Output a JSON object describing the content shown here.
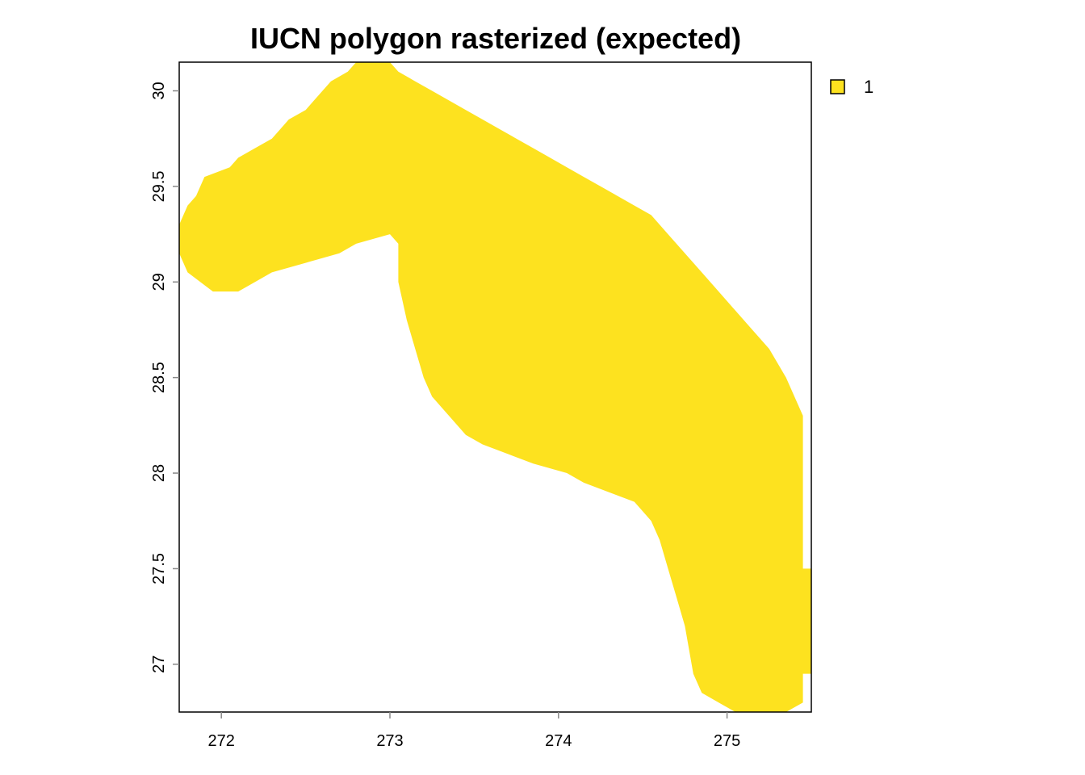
{
  "chart_data": {
    "type": "heatmap",
    "title": "IUCN polygon rasterized (expected)",
    "xlabel": "",
    "ylabel": "",
    "xlim": [
      271.75,
      275.5
    ],
    "ylim": [
      26.75,
      30.15
    ],
    "x_ticks": [
      272,
      273,
      274,
      275
    ],
    "y_ticks": [
      27,
      27.5,
      28,
      28.5,
      29,
      29.5,
      30
    ],
    "cell_value": 1,
    "fill_color": "#FDE21F",
    "legend": {
      "position": "top-right",
      "entries": [
        {
          "label": "1",
          "color": "#FDE21F"
        }
      ]
    },
    "region_upper_edge": [
      [
        271.75,
        29.3
      ],
      [
        271.8,
        29.4
      ],
      [
        271.85,
        29.45
      ],
      [
        271.9,
        29.55
      ],
      [
        272.05,
        29.6
      ],
      [
        272.1,
        29.65
      ],
      [
        272.2,
        29.7
      ],
      [
        272.3,
        29.75
      ],
      [
        272.35,
        29.8
      ],
      [
        272.4,
        29.85
      ],
      [
        272.5,
        29.9
      ],
      [
        272.55,
        29.95
      ],
      [
        272.6,
        30.0
      ],
      [
        272.65,
        30.05
      ],
      [
        272.75,
        30.1
      ],
      [
        272.8,
        30.15
      ],
      [
        273.0,
        30.15
      ],
      [
        273.05,
        30.1
      ],
      [
        273.15,
        30.05
      ],
      [
        273.25,
        30.0
      ],
      [
        273.35,
        29.95
      ],
      [
        273.45,
        29.9
      ],
      [
        273.55,
        29.85
      ],
      [
        273.65,
        29.8
      ],
      [
        273.75,
        29.75
      ],
      [
        273.85,
        29.7
      ],
      [
        273.95,
        29.65
      ],
      [
        274.05,
        29.6
      ],
      [
        274.15,
        29.55
      ],
      [
        274.25,
        29.5
      ],
      [
        274.35,
        29.45
      ],
      [
        274.45,
        29.4
      ],
      [
        274.55,
        29.35
      ],
      [
        274.65,
        29.25
      ],
      [
        274.75,
        29.15
      ],
      [
        274.85,
        29.05
      ],
      [
        274.95,
        28.95
      ],
      [
        275.05,
        28.85
      ],
      [
        275.15,
        28.75
      ],
      [
        275.25,
        28.65
      ],
      [
        275.35,
        28.5
      ],
      [
        275.45,
        28.3
      ],
      [
        275.45,
        27.5
      ],
      [
        275.5,
        27.5
      ],
      [
        275.5,
        26.95
      ]
    ],
    "region_lower_edge": [
      [
        275.5,
        26.95
      ],
      [
        275.45,
        26.95
      ],
      [
        275.45,
        26.8
      ],
      [
        275.35,
        26.75
      ],
      [
        275.05,
        26.75
      ],
      [
        274.95,
        26.8
      ],
      [
        274.85,
        26.85
      ],
      [
        274.8,
        26.95
      ],
      [
        274.75,
        27.2
      ],
      [
        274.7,
        27.35
      ],
      [
        274.65,
        27.5
      ],
      [
        274.6,
        27.65
      ],
      [
        274.55,
        27.75
      ],
      [
        274.45,
        27.85
      ],
      [
        274.3,
        27.9
      ],
      [
        274.15,
        27.95
      ],
      [
        274.05,
        28.0
      ],
      [
        273.85,
        28.05
      ],
      [
        273.7,
        28.1
      ],
      [
        273.55,
        28.15
      ],
      [
        273.45,
        28.2
      ],
      [
        273.35,
        28.3
      ],
      [
        273.25,
        28.4
      ],
      [
        273.2,
        28.5
      ],
      [
        273.15,
        28.65
      ],
      [
        273.1,
        28.8
      ],
      [
        273.05,
        29.0
      ],
      [
        273.05,
        29.2
      ],
      [
        273.0,
        29.25
      ],
      [
        272.8,
        29.2
      ],
      [
        272.7,
        29.15
      ],
      [
        272.5,
        29.1
      ],
      [
        272.3,
        29.05
      ],
      [
        272.2,
        29.0
      ],
      [
        272.1,
        28.95
      ],
      [
        271.95,
        28.95
      ],
      [
        271.8,
        29.05
      ],
      [
        271.75,
        29.15
      ]
    ]
  }
}
